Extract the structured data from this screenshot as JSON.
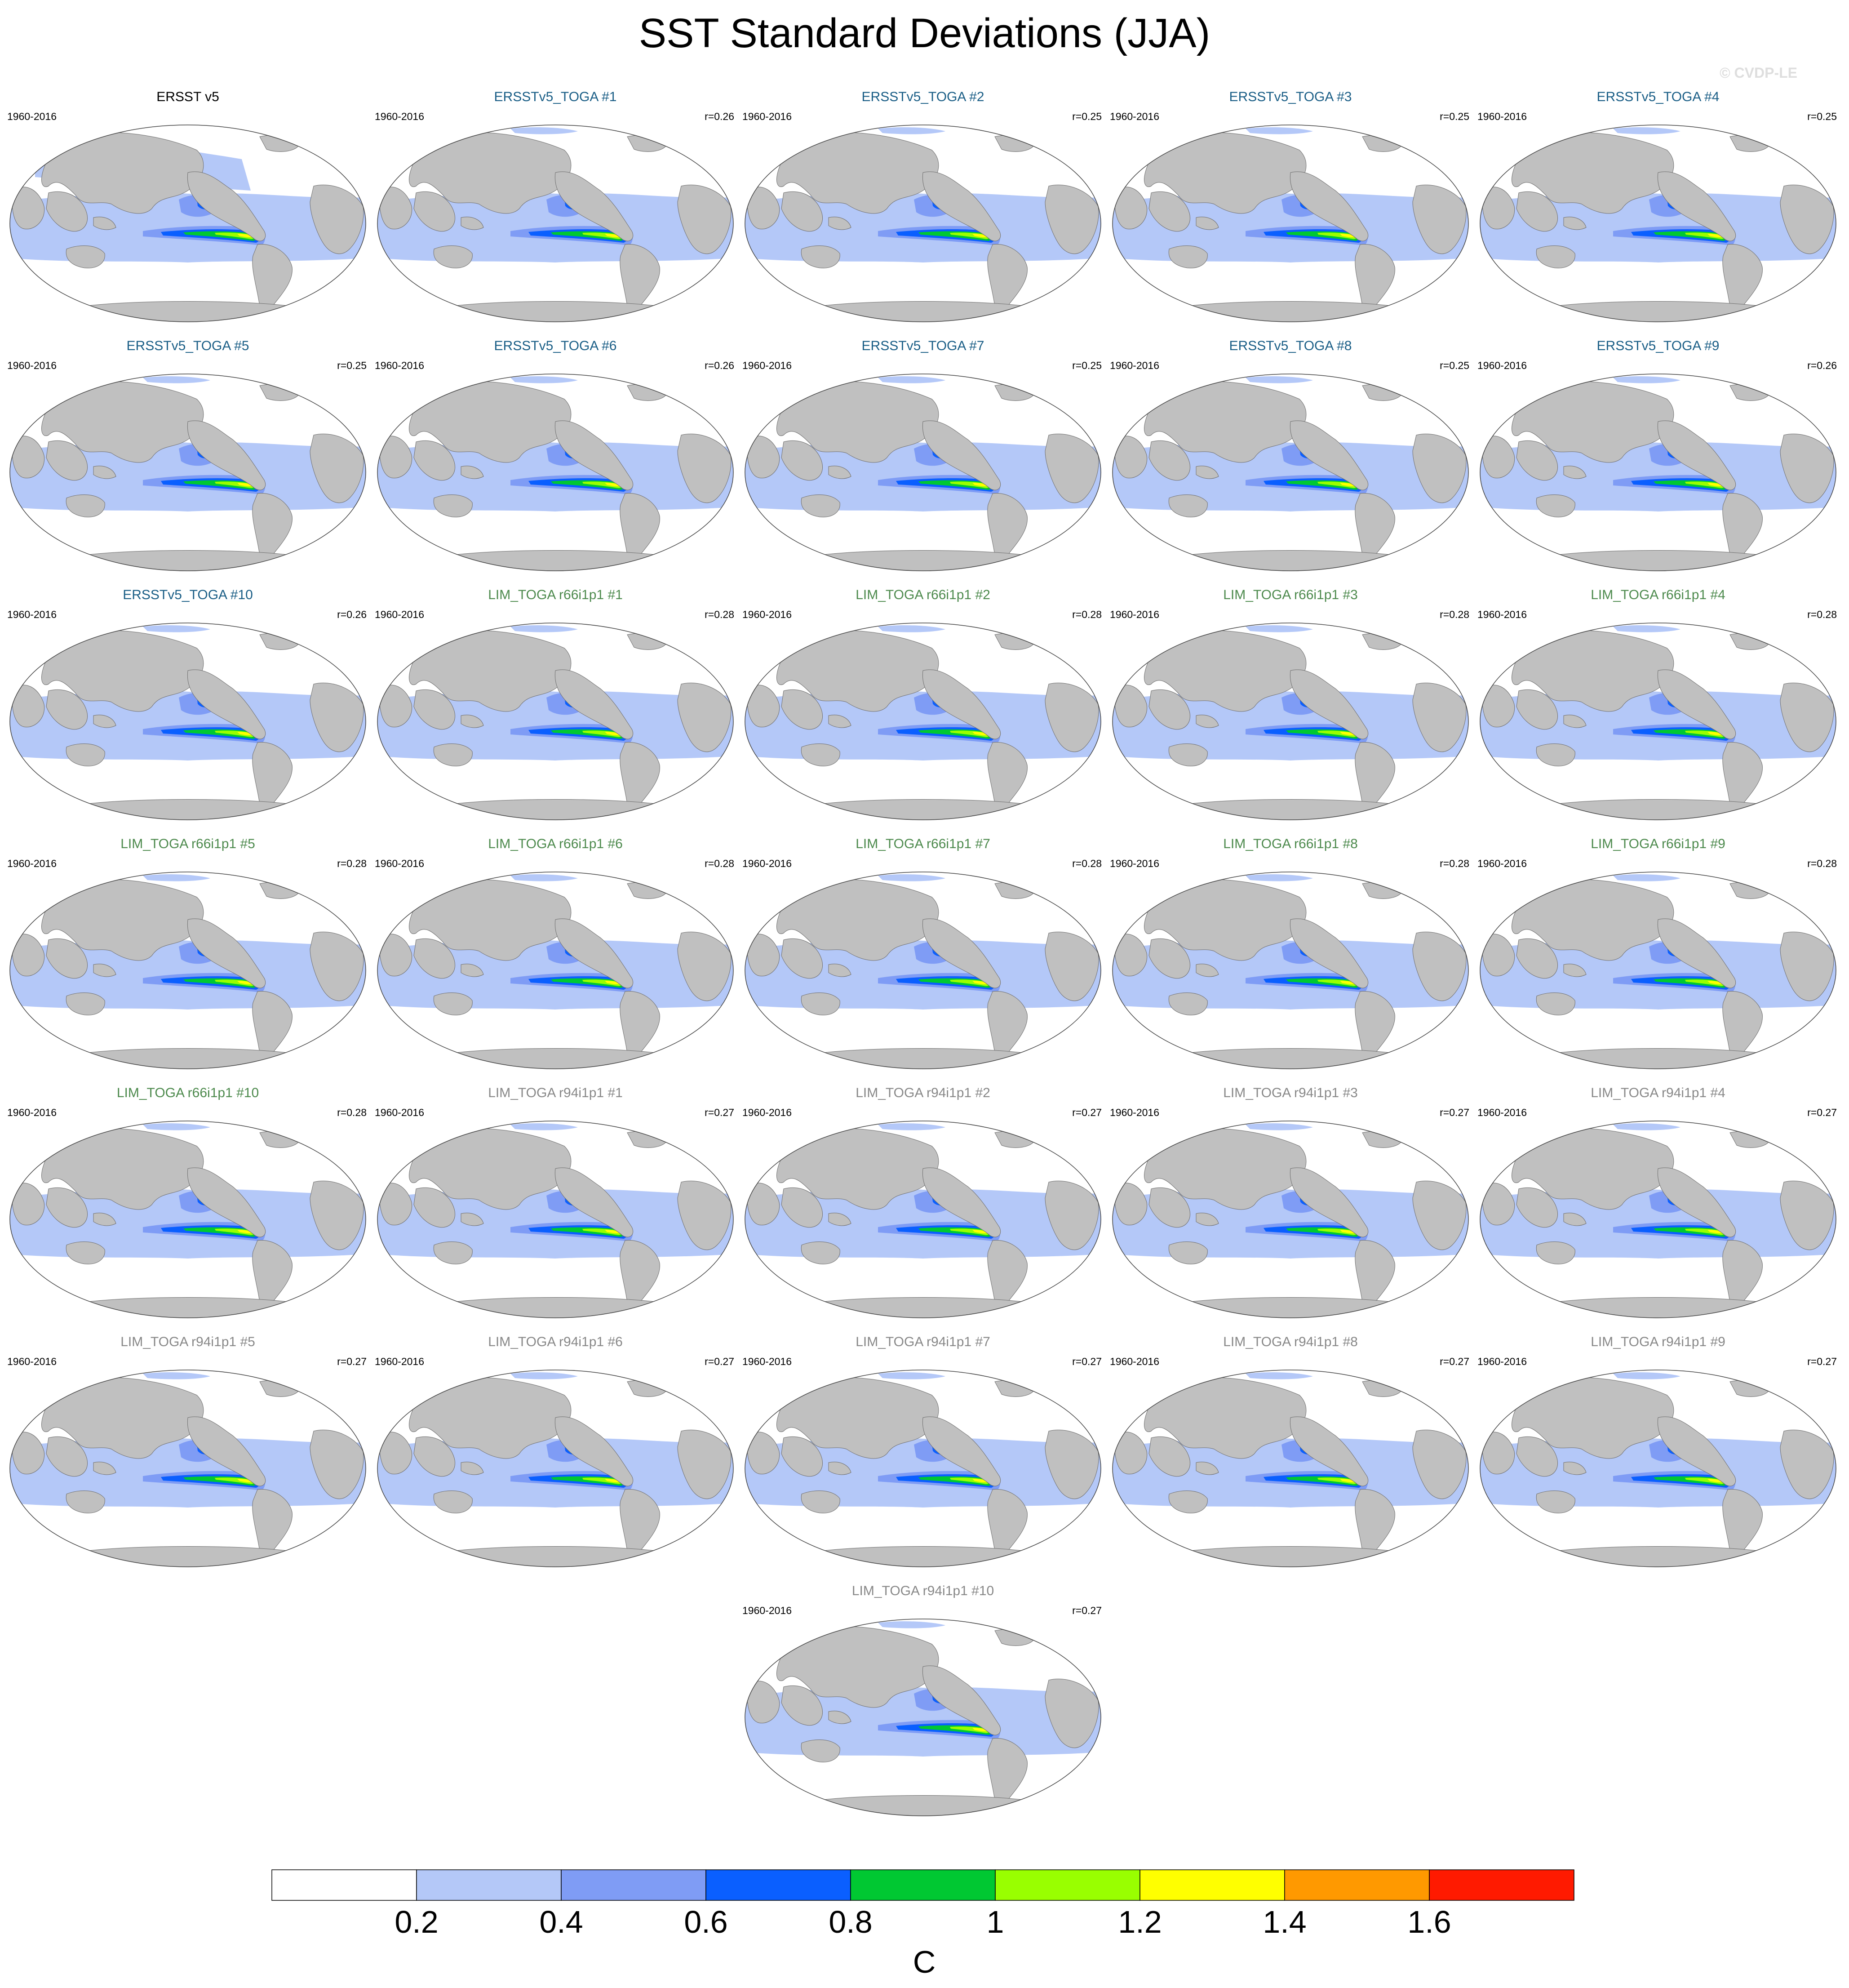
{
  "title": "SST Standard Deviations (JJA)",
  "watermark": "© CVDP-LE",
  "chart_data": {
    "type": "heatmap",
    "title": "SST Standard Deviations (JJA)",
    "projection": "global map panels (Pacific-centered)",
    "colorbar": {
      "unit": "C",
      "tick_labels": [
        "0.2",
        "0.4",
        "0.6",
        "0.8",
        "1",
        "1.2",
        "1.4",
        "1.6"
      ],
      "levels": [
        0.2,
        0.4,
        0.6,
        0.8,
        1.0,
        1.2,
        1.4,
        1.6
      ],
      "colors": [
        "#ffffff",
        "#b4c8f8",
        "#7f9cf5",
        "#0a5fff",
        "#00c832",
        "#99ff00",
        "#ffff00",
        "#ff9900",
        "#ff1a00"
      ]
    },
    "colors": {
      "obs_title": "#000000",
      "ersst_toga": "#1a5e86",
      "lim_r66": "#4d8a4d",
      "lim_r94": "#888888",
      "land": "#c0c0c0"
    },
    "panels": [
      {
        "title": "ERSST v5",
        "years": "1960-2016",
        "r": "",
        "group": "obs"
      },
      {
        "title": "ERSSTv5_TOGA #1",
        "years": "1960-2016",
        "r": "r=0.26",
        "group": "ersst_toga"
      },
      {
        "title": "ERSSTv5_TOGA #2",
        "years": "1960-2016",
        "r": "r=0.25",
        "group": "ersst_toga"
      },
      {
        "title": "ERSSTv5_TOGA #3",
        "years": "1960-2016",
        "r": "r=0.25",
        "group": "ersst_toga"
      },
      {
        "title": "ERSSTv5_TOGA #4",
        "years": "1960-2016",
        "r": "r=0.25",
        "group": "ersst_toga"
      },
      {
        "title": "ERSSTv5_TOGA #5",
        "years": "1960-2016",
        "r": "r=0.25",
        "group": "ersst_toga"
      },
      {
        "title": "ERSSTv5_TOGA #6",
        "years": "1960-2016",
        "r": "r=0.26",
        "group": "ersst_toga"
      },
      {
        "title": "ERSSTv5_TOGA #7",
        "years": "1960-2016",
        "r": "r=0.25",
        "group": "ersst_toga"
      },
      {
        "title": "ERSSTv5_TOGA #8",
        "years": "1960-2016",
        "r": "r=0.25",
        "group": "ersst_toga"
      },
      {
        "title": "ERSSTv5_TOGA #9",
        "years": "1960-2016",
        "r": "r=0.26",
        "group": "ersst_toga"
      },
      {
        "title": "ERSSTv5_TOGA #10",
        "years": "1960-2016",
        "r": "r=0.26",
        "group": "ersst_toga"
      },
      {
        "title": "LIM_TOGA r66i1p1 #1",
        "years": "1960-2016",
        "r": "r=0.28",
        "group": "lim_r66"
      },
      {
        "title": "LIM_TOGA r66i1p1 #2",
        "years": "1960-2016",
        "r": "r=0.28",
        "group": "lim_r66"
      },
      {
        "title": "LIM_TOGA r66i1p1 #3",
        "years": "1960-2016",
        "r": "r=0.28",
        "group": "lim_r66"
      },
      {
        "title": "LIM_TOGA r66i1p1 #4",
        "years": "1960-2016",
        "r": "r=0.28",
        "group": "lim_r66"
      },
      {
        "title": "LIM_TOGA r66i1p1 #5",
        "years": "1960-2016",
        "r": "r=0.28",
        "group": "lim_r66"
      },
      {
        "title": "LIM_TOGA r66i1p1 #6",
        "years": "1960-2016",
        "r": "r=0.28",
        "group": "lim_r66"
      },
      {
        "title": "LIM_TOGA r66i1p1 #7",
        "years": "1960-2016",
        "r": "r=0.28",
        "group": "lim_r66"
      },
      {
        "title": "LIM_TOGA r66i1p1 #8",
        "years": "1960-2016",
        "r": "r=0.28",
        "group": "lim_r66"
      },
      {
        "title": "LIM_TOGA r66i1p1 #9",
        "years": "1960-2016",
        "r": "r=0.28",
        "group": "lim_r66"
      },
      {
        "title": "LIM_TOGA r66i1p1 #10",
        "years": "1960-2016",
        "r": "r=0.28",
        "group": "lim_r66"
      },
      {
        "title": "LIM_TOGA r94i1p1 #1",
        "years": "1960-2016",
        "r": "r=0.27",
        "group": "lim_r94"
      },
      {
        "title": "LIM_TOGA r94i1p1 #2",
        "years": "1960-2016",
        "r": "r=0.27",
        "group": "lim_r94"
      },
      {
        "title": "LIM_TOGA r94i1p1 #3",
        "years": "1960-2016",
        "r": "r=0.27",
        "group": "lim_r94"
      },
      {
        "title": "LIM_TOGA r94i1p1 #4",
        "years": "1960-2016",
        "r": "r=0.27",
        "group": "lim_r94"
      },
      {
        "title": "LIM_TOGA r94i1p1 #5",
        "years": "1960-2016",
        "r": "r=0.27",
        "group": "lim_r94"
      },
      {
        "title": "LIM_TOGA r94i1p1 #6",
        "years": "1960-2016",
        "r": "r=0.27",
        "group": "lim_r94"
      },
      {
        "title": "LIM_TOGA r94i1p1 #7",
        "years": "1960-2016",
        "r": "r=0.27",
        "group": "lim_r94"
      },
      {
        "title": "LIM_TOGA r94i1p1 #8",
        "years": "1960-2016",
        "r": "r=0.27",
        "group": "lim_r94"
      },
      {
        "title": "LIM_TOGA r94i1p1 #9",
        "years": "1960-2016",
        "r": "r=0.27",
        "group": "lim_r94"
      },
      {
        "title": "LIM_TOGA r94i1p1 #10",
        "years": "1960-2016",
        "r": "r=0.27",
        "group": "lim_r94"
      }
    ]
  }
}
